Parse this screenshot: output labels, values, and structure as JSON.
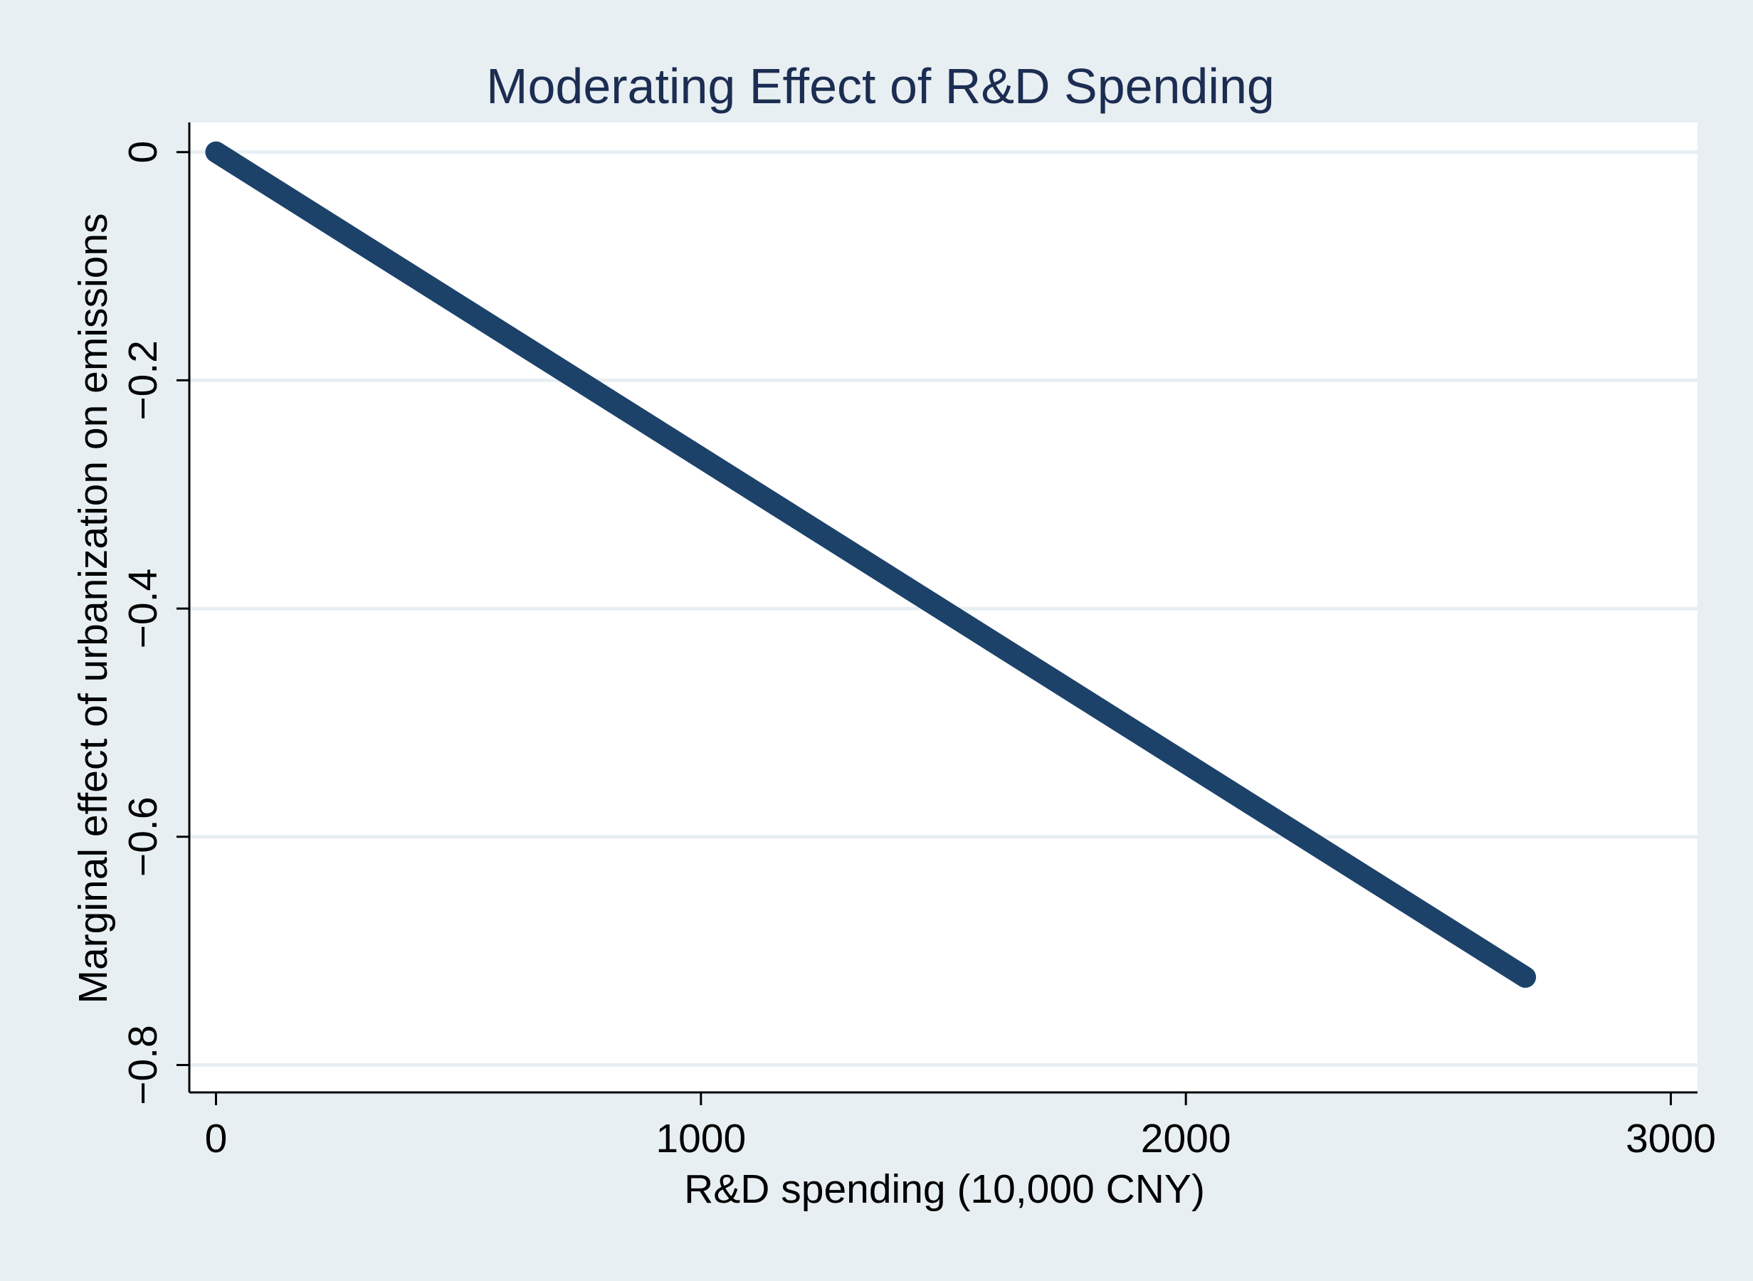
{
  "chart_data": {
    "type": "line",
    "title": "Moderating Effect of R&D Spending",
    "xlabel": "R&D spending (10,000 CNY)",
    "ylabel": "Marginal effect of urbanization on emissions",
    "xlim": [
      -55,
      3055
    ],
    "ylim": [
      -0.824,
      0.026
    ],
    "x_ticks": [
      0,
      1000,
      2000,
      3000
    ],
    "x_tick_labels": [
      "0",
      "1000",
      "2000",
      "3000"
    ],
    "y_ticks": [
      0,
      -0.2,
      -0.4,
      -0.6,
      -0.8
    ],
    "y_tick_labels": [
      "0",
      "−0.2",
      "−0.4",
      "−0.6",
      "−0.8"
    ],
    "grid": true,
    "legend": "none",
    "series": [
      {
        "name": "Marginal effect",
        "x": [
          0,
          2700
        ],
        "y": [
          0,
          -0.723
        ]
      }
    ],
    "colors": {
      "outer_background": "#e8eff2",
      "plot_background": "#ffffff",
      "grid": "#e8eff2",
      "line": "#1c426a",
      "title": "#1c2d52",
      "axis": "#000000"
    }
  }
}
